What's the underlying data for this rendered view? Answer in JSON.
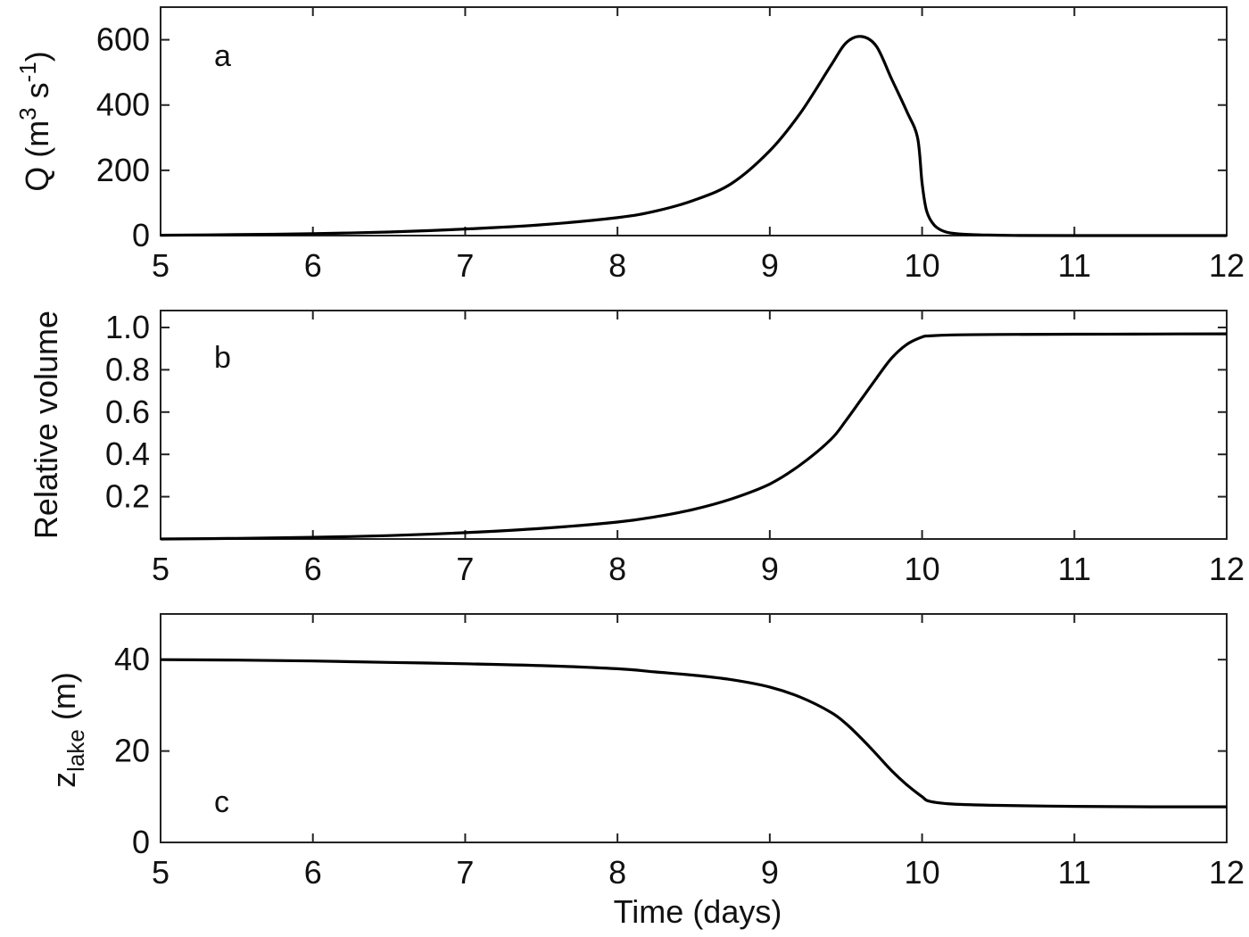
{
  "chart_data": [
    {
      "type": "line",
      "panel_label": "a",
      "ylabel": "Q (m",
      "ylabel_sup1": "3",
      "ylabel_mid": " s",
      "ylabel_sup2": "-1",
      "ylabel_end": ")",
      "xlim": [
        5,
        12
      ],
      "ylim": [
        0,
        700
      ],
      "xticks": [
        "5",
        "6",
        "7",
        "8",
        "9",
        "10",
        "11",
        "12"
      ],
      "yticks": [
        "0",
        "200",
        "400",
        "600"
      ],
      "ytick_values": [
        0,
        200,
        400,
        600
      ],
      "grid": false,
      "series": [
        {
          "color": "#000000",
          "x": [
            5,
            5.5,
            6,
            6.5,
            7,
            7.5,
            8,
            8.25,
            8.5,
            8.75,
            9,
            9.2,
            9.4,
            9.5,
            9.6,
            9.7,
            9.8,
            9.9,
            9.97,
            10.0,
            10.03,
            10.08,
            10.15,
            10.25,
            10.4,
            10.6,
            11,
            12
          ],
          "y": [
            1,
            3,
            6,
            11,
            20,
            33,
            55,
            75,
            108,
            160,
            260,
            375,
            520,
            590,
            610,
            580,
            480,
            380,
            300,
            160,
            75,
            32,
            12,
            5,
            2,
            0.5,
            0,
            0
          ]
        }
      ]
    },
    {
      "type": "line",
      "panel_label": "b",
      "ylabel": "Relative volume",
      "xlim": [
        5,
        12
      ],
      "ylim": [
        0,
        1.08
      ],
      "xticks": [
        "5",
        "6",
        "7",
        "8",
        "9",
        "10",
        "11",
        "12"
      ],
      "yticks": [
        "0.2",
        "0.4",
        "0.6",
        "0.8",
        "1.0"
      ],
      "ytick_values": [
        0.2,
        0.4,
        0.6,
        0.8,
        1.0
      ],
      "grid": false,
      "series": [
        {
          "color": "#000000",
          "x": [
            5,
            5.5,
            6,
            6.5,
            7,
            7.5,
            8,
            8.25,
            8.5,
            8.75,
            9,
            9.2,
            9.4,
            9.5,
            9.6,
            9.7,
            9.8,
            9.9,
            10.0,
            10.05,
            10.2,
            10.5,
            11,
            11.5,
            12
          ],
          "y": [
            0.0,
            0.003,
            0.008,
            0.016,
            0.03,
            0.05,
            0.08,
            0.105,
            0.14,
            0.19,
            0.26,
            0.35,
            0.47,
            0.56,
            0.66,
            0.76,
            0.855,
            0.92,
            0.955,
            0.96,
            0.965,
            0.967,
            0.968,
            0.969,
            0.97
          ]
        }
      ]
    },
    {
      "type": "line",
      "panel_label": "c",
      "ylabel": "z",
      "ylabel_sub": "lake",
      "ylabel_end": " (m)",
      "xlabel": "Time (days)",
      "xlim": [
        5,
        12
      ],
      "ylim": [
        0,
        50
      ],
      "xticks": [
        "5",
        "6",
        "7",
        "8",
        "9",
        "10",
        "11",
        "12"
      ],
      "yticks": [
        "0",
        "20",
        "40"
      ],
      "ytick_values": [
        0,
        20,
        40
      ],
      "grid": false,
      "series": [
        {
          "color": "#000000",
          "x": [
            5,
            5.5,
            6,
            6.5,
            7,
            7.5,
            8,
            8.25,
            8.5,
            8.75,
            9,
            9.2,
            9.4,
            9.5,
            9.6,
            9.7,
            9.8,
            9.9,
            10.0,
            10.05,
            10.2,
            10.5,
            11,
            11.5,
            12
          ],
          "y": [
            40,
            39.9,
            39.7,
            39.4,
            39.1,
            38.7,
            38.0,
            37.3,
            36.6,
            35.6,
            34.0,
            31.8,
            28.5,
            26.0,
            22.8,
            19.3,
            15.7,
            12.6,
            10.0,
            9.0,
            8.4,
            8.1,
            7.9,
            7.8,
            7.8
          ]
        }
      ]
    }
  ]
}
